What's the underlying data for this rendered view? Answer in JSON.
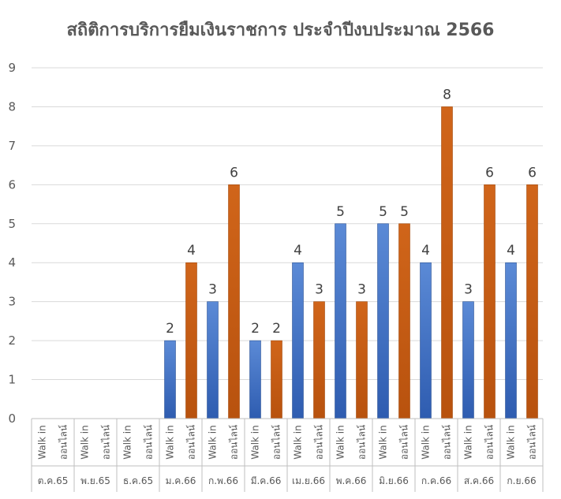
{
  "chart_data": {
    "type": "bar",
    "title": "สถิติการบริการยืมเงินราชการ ประจำปีงบประมาณ 2566",
    "ylim": [
      0,
      9
    ],
    "yticks": [
      "0",
      "1",
      "2",
      "3",
      "4",
      "5",
      "6",
      "7",
      "8",
      "9"
    ],
    "grid": true,
    "legend": "none",
    "categories": [
      "ต.ค.65",
      "พ.ย.65",
      "ธ.ค.65",
      "ม.ค.66",
      "ก.พ.66",
      "มี.ค.66",
      "เม.ย.66",
      "พ.ค.66",
      "มิ.ย.66",
      "ก.ค.66",
      "ส.ค.66",
      "ก.ย.66"
    ],
    "series": [
      {
        "label": "Walk in",
        "color": "#4472c4",
        "values": [
          null,
          null,
          null,
          2,
          3,
          2,
          4,
          5,
          5,
          4,
          3,
          4
        ]
      },
      {
        "label": "ออนไลน์",
        "color": "#c55a11",
        "values": [
          null,
          null,
          null,
          4,
          6,
          2,
          3,
          3,
          5,
          8,
          6,
          6
        ]
      }
    ]
  }
}
